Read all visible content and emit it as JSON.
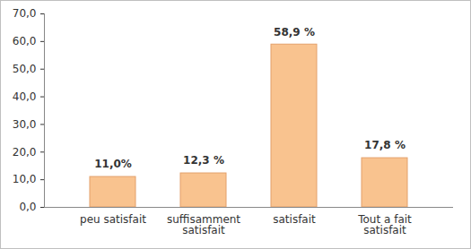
{
  "chart_data": {
    "type": "bar",
    "categories": [
      "peu satisfait",
      "suffisamment satisfait",
      "satisfait",
      "Tout a fait satisfait"
    ],
    "values": [
      11.0,
      12.3,
      58.9,
      17.8
    ],
    "value_labels": [
      "11,0%",
      "12,3 %",
      "58,9 %",
      "17,8 %"
    ],
    "data_labels": true,
    "color": "#f9c38f",
    "ylim": [
      0,
      70
    ],
    "yticks": [
      {
        "value": 0,
        "label": "0,0"
      },
      {
        "value": 10,
        "label": "10,0"
      },
      {
        "value": 20,
        "label": "20,0"
      },
      {
        "value": 30,
        "label": "30,0"
      },
      {
        "value": 40,
        "label": "40,0"
      },
      {
        "value": 50,
        "label": "50,0"
      },
      {
        "value": 60,
        "label": "60,0"
      },
      {
        "value": 70,
        "label": "70,0"
      }
    ],
    "grid": false
  }
}
